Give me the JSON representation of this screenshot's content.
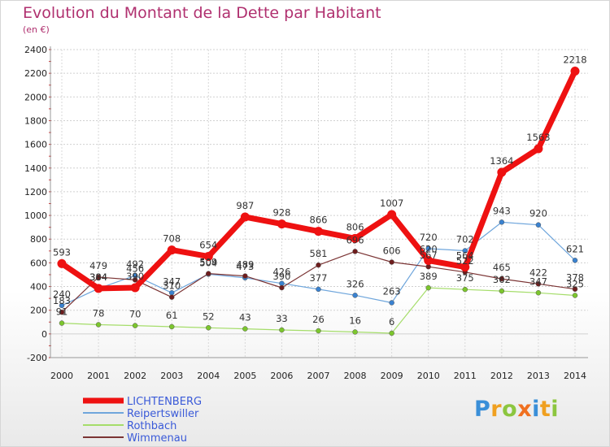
{
  "title": "Evolution du Montant de la Dette par Habitant",
  "subtitle": "(en €)",
  "logo": "Proxiti",
  "colors": {
    "title": "#b0306f",
    "LICHTENBERG": "#ee1111",
    "Reipertswiller": "#4b8fd1",
    "Rothbach": "#8fd63a",
    "Wimmenau": "#6e1d1d",
    "legend_text": "#3a5ad8"
  },
  "chart_data": {
    "type": "line",
    "title": "Evolution du Montant de la Dette par Habitant",
    "subtitle": "(en €)",
    "x": [
      "2000",
      "2001",
      "2002",
      "2003",
      "2004",
      "2005",
      "2006",
      "2007",
      "2008",
      "2009",
      "2010",
      "2011",
      "2012",
      "2013",
      "2014"
    ],
    "ylim": [
      -200,
      2400
    ],
    "yticks": [
      "-200",
      "0",
      "200",
      "400",
      "600",
      "800",
      "1000",
      "1200",
      "1400",
      "1600",
      "1800",
      "2000",
      "2200",
      "2400"
    ],
    "grid": true,
    "legend_position": "bottom-left",
    "series": [
      {
        "name": "LICHTENBERG",
        "values": [
          593,
          384,
          390,
          708,
          654,
          987,
          928,
          866,
          806,
          1007,
          620,
          564,
          1364,
          1563,
          2218
        ],
        "labels": [
          "593",
          "384",
          "390",
          "708",
          "654",
          "987",
          "928",
          "866",
          "806",
          "1007",
          "620",
          "564",
          "1364",
          "1563",
          "2218"
        ]
      },
      {
        "name": "Reipertswiller",
        "values": [
          240,
          384,
          492,
          347,
          504,
          473,
          426,
          377,
          326,
          263,
          720,
          702,
          943,
          920,
          621
        ],
        "labels": [
          "240",
          "384",
          "492",
          "347",
          "504",
          "473",
          "426",
          "377",
          "326",
          "263",
          "720",
          "702",
          "943",
          "920",
          "621"
        ]
      },
      {
        "name": "Rothbach",
        "values": [
          91,
          78,
          70,
          61,
          52,
          43,
          33,
          26,
          16,
          6,
          389,
          375,
          362,
          347,
          325
        ],
        "labels": [
          "91",
          "78",
          "70",
          "61",
          "52",
          "43",
          "33",
          "26",
          "16",
          "6",
          "389",
          "375",
          "362",
          "347",
          "325"
        ]
      },
      {
        "name": "Wimmenau",
        "values": [
          183,
          479,
          456,
          310,
          509,
          489,
          390,
          581,
          696,
          606,
          567,
          522,
          465,
          422,
          378
        ],
        "labels": [
          "183",
          "479",
          "456",
          "310",
          "509",
          "489",
          "390",
          "581",
          "696",
          "606",
          "567",
          "522",
          "465",
          "422",
          "378"
        ]
      }
    ]
  }
}
